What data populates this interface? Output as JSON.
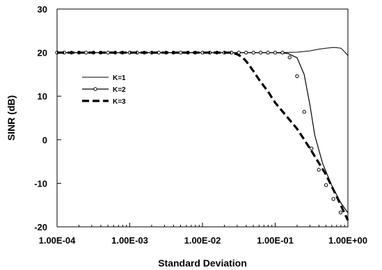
{
  "chart_data": {
    "type": "line",
    "title": "",
    "xlabel": "Standard Deviation",
    "ylabel": "SINR (dB)",
    "xscale": "log",
    "xlim": [
      0.0001,
      1
    ],
    "ylim": [
      -20,
      30
    ],
    "x_ticks": [
      "1.00E-04",
      "1.00E-03",
      "1.00E-02",
      "1.00E-01",
      "1.00E+00"
    ],
    "y_ticks": [
      "-20",
      "-10",
      "0",
      "10",
      "20",
      "30"
    ],
    "grid": false,
    "legend_position": "upper-left inside plot",
    "series": [
      {
        "name": "K=1",
        "style": "thin solid",
        "color": "#000000",
        "points": [
          [
            0.0001,
            20
          ],
          [
            0.001,
            20
          ],
          [
            0.01,
            20
          ],
          [
            0.1,
            20
          ],
          [
            0.2,
            20.1
          ],
          [
            0.3,
            20.4
          ],
          [
            0.4,
            20.8
          ],
          [
            0.5,
            21.0
          ],
          [
            0.65,
            21.2
          ],
          [
            0.8,
            21.0
          ],
          [
            0.9,
            20.2
          ],
          [
            1.0,
            19.3
          ]
        ]
      },
      {
        "name": "K=2",
        "style": "solid with open circle markers",
        "color": "#000000",
        "points": [
          [
            0.0001,
            20
          ],
          [
            0.01,
            20
          ],
          [
            0.1,
            20
          ],
          [
            0.15,
            19.8
          ],
          [
            0.2,
            18.8
          ],
          [
            0.25,
            15.0
          ],
          [
            0.3,
            8.0
          ],
          [
            0.35,
            1.0
          ],
          [
            0.45,
            -5.5
          ],
          [
            0.6,
            -10.5
          ],
          [
            0.8,
            -14.5
          ],
          [
            1.0,
            -16.8
          ]
        ],
        "markers": [
          [
            0.0001,
            20
          ],
          [
            0.000126,
            20
          ],
          [
            0.000158,
            20
          ],
          [
            0.0002,
            20
          ],
          [
            0.000251,
            20
          ],
          [
            0.000316,
            20
          ],
          [
            0.000398,
            20
          ],
          [
            0.000501,
            20
          ],
          [
            0.000631,
            20
          ],
          [
            0.000794,
            20
          ],
          [
            0.001,
            20
          ],
          [
            0.00126,
            20
          ],
          [
            0.00158,
            20
          ],
          [
            0.002,
            20
          ],
          [
            0.00251,
            20
          ],
          [
            0.00316,
            20
          ],
          [
            0.00398,
            20
          ],
          [
            0.00501,
            20
          ],
          [
            0.00631,
            20
          ],
          [
            0.00794,
            20
          ],
          [
            0.01,
            20
          ],
          [
            0.0126,
            20
          ],
          [
            0.0158,
            20
          ],
          [
            0.02,
            20
          ],
          [
            0.0251,
            20
          ],
          [
            0.0316,
            20
          ],
          [
            0.0398,
            20
          ],
          [
            0.0501,
            20
          ],
          [
            0.0631,
            20
          ],
          [
            0.0794,
            20
          ],
          [
            0.1,
            20
          ],
          [
            0.126,
            20
          ],
          [
            0.158,
            18.9
          ],
          [
            0.2,
            14.6
          ],
          [
            0.251,
            6.4
          ],
          [
            0.316,
            -2.0
          ],
          [
            0.398,
            -6.9
          ],
          [
            0.501,
            -10.4
          ],
          [
            0.631,
            -13.6
          ],
          [
            0.794,
            -16.7
          ]
        ]
      },
      {
        "name": "K=3",
        "style": "thick dashed",
        "color": "#000000",
        "points": [
          [
            0.0001,
            20
          ],
          [
            0.01,
            20
          ],
          [
            0.025,
            20
          ],
          [
            0.03,
            19.6
          ],
          [
            0.035,
            19.0
          ],
          [
            0.04,
            18.0
          ],
          [
            0.05,
            15.8
          ],
          [
            0.06,
            13.8
          ],
          [
            0.08,
            11.0
          ],
          [
            0.1,
            8.5
          ],
          [
            0.15,
            5.0
          ],
          [
            0.2,
            2.5
          ],
          [
            0.3,
            -2.0
          ],
          [
            0.5,
            -8.0
          ],
          [
            0.7,
            -13.0
          ],
          [
            1.0,
            -18.5
          ]
        ]
      }
    ]
  }
}
